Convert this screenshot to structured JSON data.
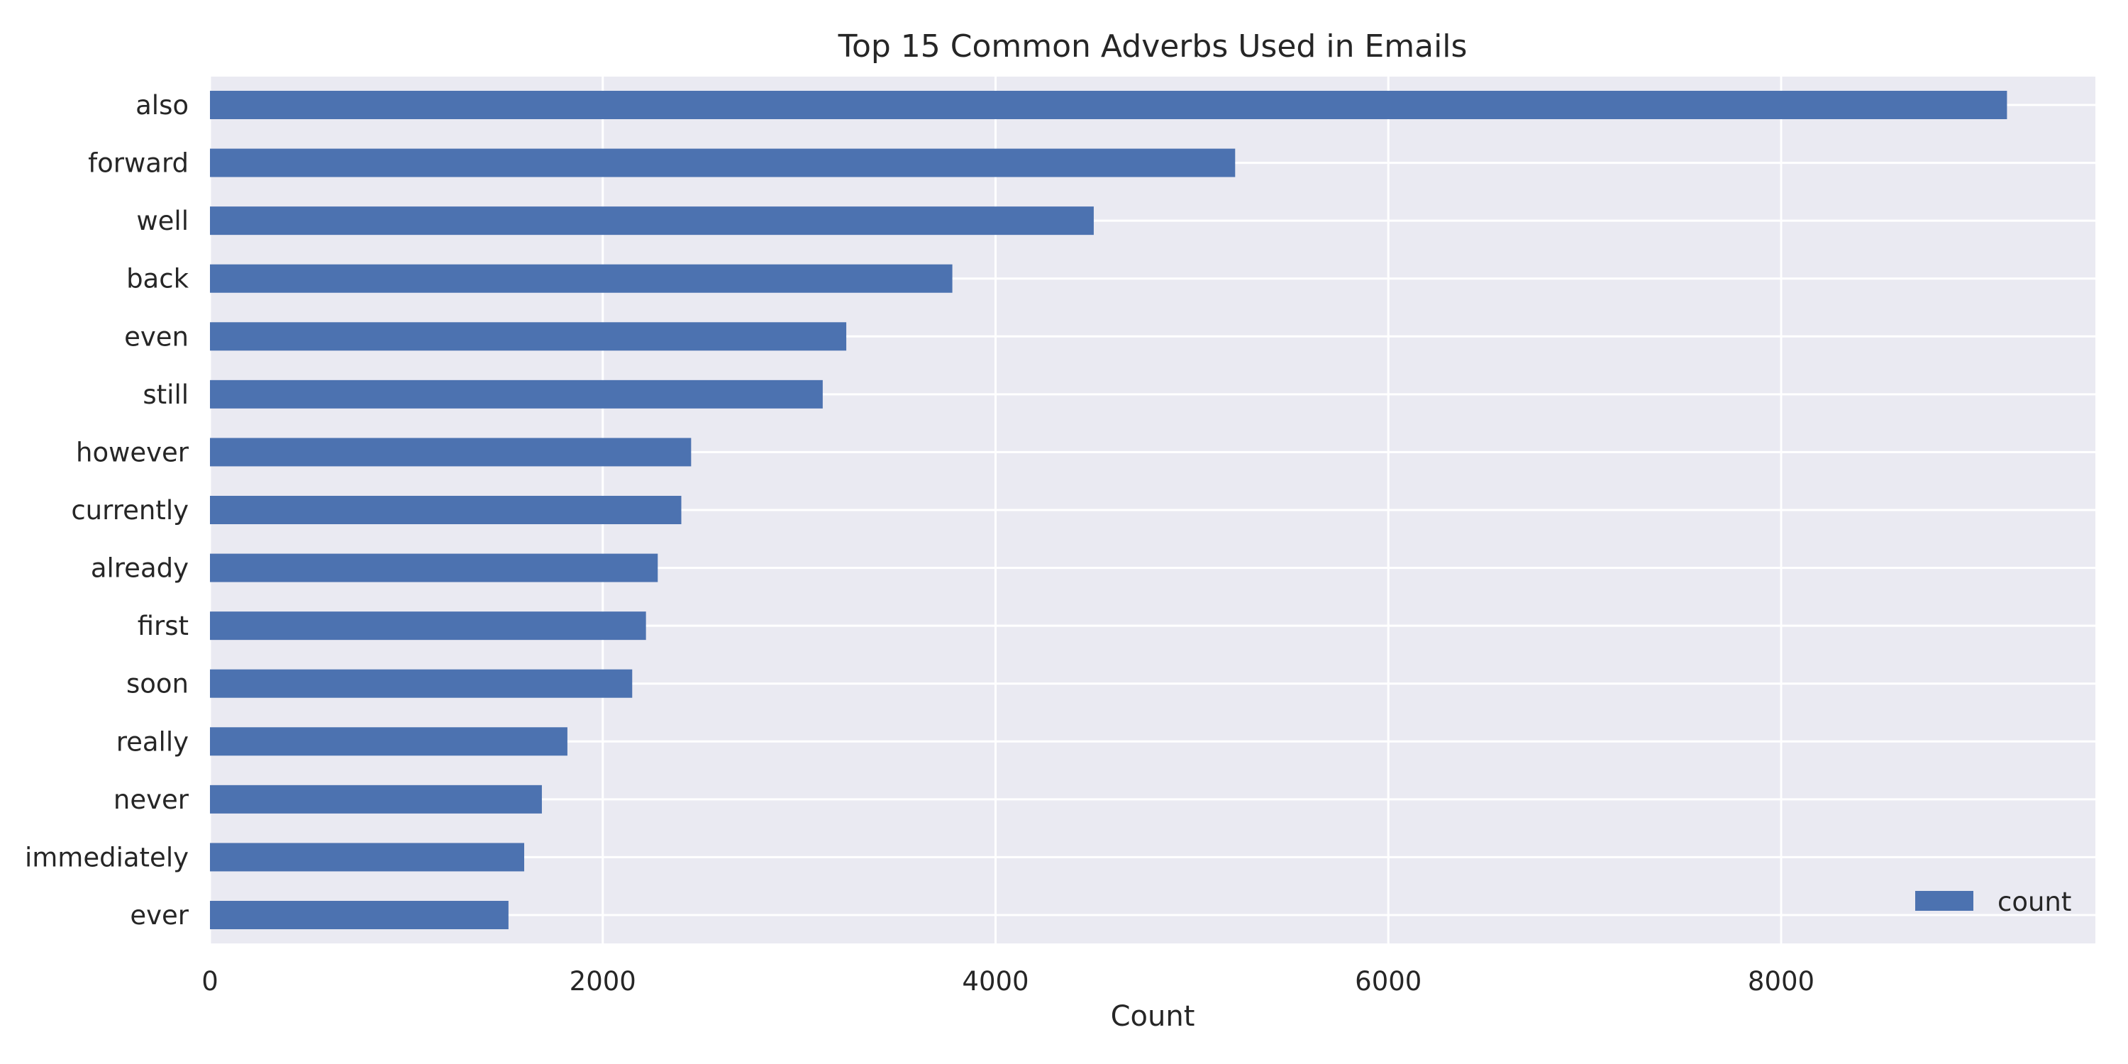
{
  "chart_data": {
    "type": "bar",
    "orientation": "horizontal",
    "title": "Top 15 Common Adverbs Used in Emails",
    "xlabel": "Count",
    "ylabel": "",
    "categories": [
      "also",
      "forward",
      "well",
      "back",
      "even",
      "still",
      "however",
      "currently",
      "already",
      "first",
      "soon",
      "really",
      "never",
      "immediately",
      "ever"
    ],
    "series": [
      {
        "name": "count",
        "values": [
          9150,
          5220,
          4500,
          3780,
          3240,
          3120,
          2450,
          2400,
          2280,
          2220,
          2150,
          1820,
          1690,
          1600,
          1520
        ]
      }
    ],
    "xlim": [
      0,
      9600
    ],
    "xticks": [
      0,
      2000,
      4000,
      6000,
      8000
    ],
    "xtick_labels": [
      "0",
      "2000",
      "4000",
      "6000",
      "8000"
    ],
    "grid": true,
    "legend_position": "lower-right",
    "colors": {
      "bar": "#4c72b0",
      "plot_background": "#eaeaf2",
      "grid": "#ffffff",
      "text": "#262626"
    }
  }
}
